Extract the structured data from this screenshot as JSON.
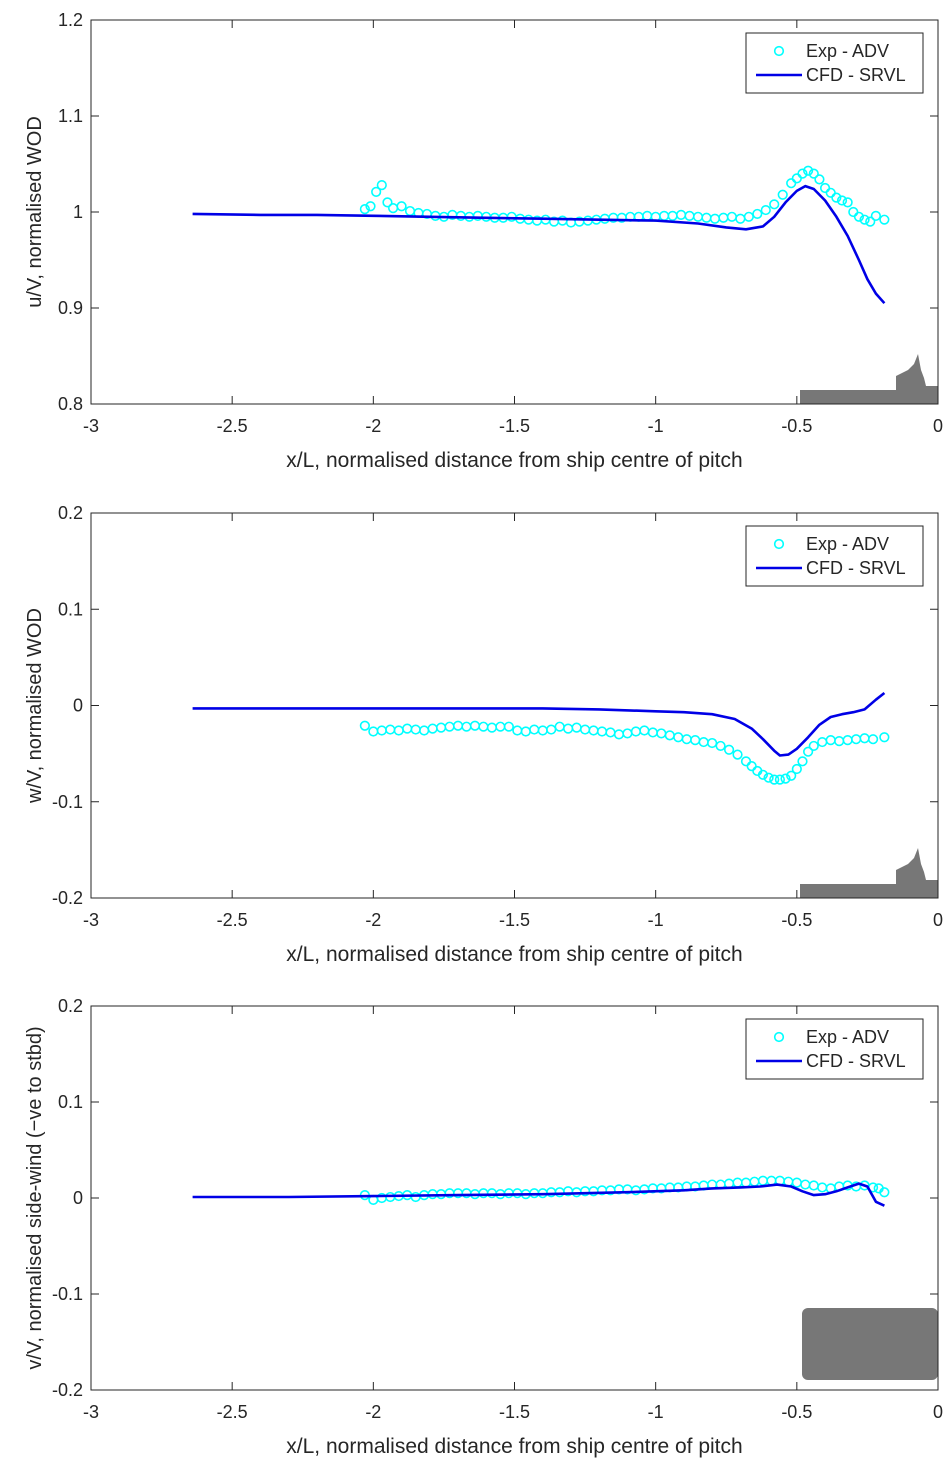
{
  "colors": {
    "exp": "#00ffff",
    "cfd": "#0000e6",
    "ship": "#777777",
    "axis": "#262626"
  },
  "chart_data": [
    {
      "type": "line",
      "xlabel": "x/L, normalised distance from ship centre of pitch",
      "ylabel": "u/V, normalised WOD",
      "xlim": [
        -3,
        0
      ],
      "ylim": [
        0.8,
        1.2
      ],
      "xticks": [
        "-3",
        "-2.5",
        "-2",
        "-1.5",
        "-1",
        "-0.5",
        "0"
      ],
      "yticks": [
        "0.8",
        "0.9",
        "1",
        "1.1",
        "1.2"
      ],
      "legend_position": "top-right",
      "grid": false,
      "series": [
        {
          "name": "Exp - ADV",
          "style": "markers",
          "x": [
            -2.03,
            -2.01,
            -1.99,
            -1.97,
            -1.95,
            -1.93,
            -1.9,
            -1.87,
            -1.84,
            -1.81,
            -1.78,
            -1.75,
            -1.72,
            -1.69,
            -1.66,
            -1.63,
            -1.6,
            -1.57,
            -1.54,
            -1.51,
            -1.48,
            -1.45,
            -1.42,
            -1.39,
            -1.36,
            -1.33,
            -1.3,
            -1.27,
            -1.24,
            -1.21,
            -1.18,
            -1.15,
            -1.12,
            -1.09,
            -1.06,
            -1.03,
            -1.0,
            -0.97,
            -0.94,
            -0.91,
            -0.88,
            -0.85,
            -0.82,
            -0.79,
            -0.76,
            -0.73,
            -0.7,
            -0.67,
            -0.64,
            -0.61,
            -0.58,
            -0.55,
            -0.52,
            -0.5,
            -0.48,
            -0.46,
            -0.44,
            -0.42,
            -0.4,
            -0.38,
            -0.36,
            -0.34,
            -0.32,
            -0.3,
            -0.28,
            -0.26,
            -0.24,
            -0.22,
            -0.19
          ],
          "y": [
            1.003,
            1.006,
            1.021,
            1.028,
            1.01,
            1.004,
            1.006,
            1.001,
            0.999,
            0.998,
            0.996,
            0.995,
            0.997,
            0.996,
            0.995,
            0.996,
            0.995,
            0.994,
            0.994,
            0.995,
            0.993,
            0.992,
            0.991,
            0.992,
            0.99,
            0.991,
            0.989,
            0.99,
            0.991,
            0.992,
            0.993,
            0.994,
            0.994,
            0.995,
            0.995,
            0.996,
            0.995,
            0.996,
            0.996,
            0.997,
            0.996,
            0.995,
            0.994,
            0.993,
            0.994,
            0.995,
            0.993,
            0.995,
            0.998,
            1.002,
            1.008,
            1.018,
            1.03,
            1.035,
            1.04,
            1.043,
            1.04,
            1.034,
            1.025,
            1.02,
            1.015,
            1.012,
            1.01,
            1.0,
            0.995,
            0.992,
            0.99,
            0.996,
            0.992
          ]
        },
        {
          "name": "CFD - SRVL",
          "style": "line",
          "x": [
            -2.64,
            -2.4,
            -2.2,
            -2.0,
            -1.8,
            -1.6,
            -1.4,
            -1.2,
            -1.0,
            -0.85,
            -0.75,
            -0.68,
            -0.62,
            -0.58,
            -0.54,
            -0.5,
            -0.47,
            -0.44,
            -0.4,
            -0.36,
            -0.32,
            -0.28,
            -0.25,
            -0.22,
            -0.19
          ],
          "y": [
            0.998,
            0.997,
            0.997,
            0.996,
            0.995,
            0.994,
            0.993,
            0.992,
            0.991,
            0.988,
            0.984,
            0.982,
            0.985,
            0.995,
            1.01,
            1.022,
            1.027,
            1.024,
            1.012,
            0.995,
            0.975,
            0.95,
            0.93,
            0.915,
            0.905
          ]
        }
      ]
    },
    {
      "type": "line",
      "xlabel": "x/L, normalised distance from ship centre of pitch",
      "ylabel": "w/V, normalised WOD",
      "xlim": [
        -3,
        0
      ],
      "ylim": [
        -0.2,
        0.2
      ],
      "xticks": [
        "-3",
        "-2.5",
        "-2",
        "-1.5",
        "-1",
        "-0.5",
        "0"
      ],
      "yticks": [
        "-0.2",
        "-0.1",
        "0",
        "0.1",
        "0.2"
      ],
      "legend_position": "top-right",
      "grid": false,
      "series": [
        {
          "name": "Exp - ADV",
          "style": "markers",
          "x": [
            -2.03,
            -2.0,
            -1.97,
            -1.94,
            -1.91,
            -1.88,
            -1.85,
            -1.82,
            -1.79,
            -1.76,
            -1.73,
            -1.7,
            -1.67,
            -1.64,
            -1.61,
            -1.58,
            -1.55,
            -1.52,
            -1.49,
            -1.46,
            -1.43,
            -1.4,
            -1.37,
            -1.34,
            -1.31,
            -1.28,
            -1.25,
            -1.22,
            -1.19,
            -1.16,
            -1.13,
            -1.1,
            -1.07,
            -1.04,
            -1.01,
            -0.98,
            -0.95,
            -0.92,
            -0.89,
            -0.86,
            -0.83,
            -0.8,
            -0.77,
            -0.74,
            -0.71,
            -0.68,
            -0.66,
            -0.64,
            -0.62,
            -0.6,
            -0.58,
            -0.56,
            -0.54,
            -0.52,
            -0.5,
            -0.48,
            -0.46,
            -0.44,
            -0.41,
            -0.38,
            -0.35,
            -0.32,
            -0.29,
            -0.26,
            -0.23,
            -0.19
          ],
          "y": [
            -0.021,
            -0.027,
            -0.026,
            -0.025,
            -0.026,
            -0.024,
            -0.025,
            -0.026,
            -0.024,
            -0.023,
            -0.022,
            -0.021,
            -0.022,
            -0.021,
            -0.022,
            -0.023,
            -0.022,
            -0.022,
            -0.026,
            -0.027,
            -0.025,
            -0.026,
            -0.025,
            -0.022,
            -0.024,
            -0.023,
            -0.025,
            -0.026,
            -0.027,
            -0.028,
            -0.03,
            -0.029,
            -0.027,
            -0.026,
            -0.028,
            -0.029,
            -0.031,
            -0.033,
            -0.035,
            -0.036,
            -0.038,
            -0.039,
            -0.042,
            -0.046,
            -0.051,
            -0.058,
            -0.063,
            -0.068,
            -0.072,
            -0.075,
            -0.077,
            -0.077,
            -0.076,
            -0.073,
            -0.066,
            -0.058,
            -0.048,
            -0.042,
            -0.038,
            -0.036,
            -0.037,
            -0.036,
            -0.035,
            -0.034,
            -0.035,
            -0.033
          ]
        },
        {
          "name": "CFD - SRVL",
          "style": "line",
          "x": [
            -2.64,
            -2.4,
            -2.2,
            -2.0,
            -1.8,
            -1.6,
            -1.4,
            -1.2,
            -1.0,
            -0.9,
            -0.8,
            -0.72,
            -0.66,
            -0.62,
            -0.58,
            -0.56,
            -0.53,
            -0.5,
            -0.46,
            -0.42,
            -0.38,
            -0.34,
            -0.3,
            -0.26,
            -0.22,
            -0.19
          ],
          "y": [
            -0.003,
            -0.003,
            -0.003,
            -0.003,
            -0.003,
            -0.003,
            -0.003,
            -0.004,
            -0.006,
            -0.007,
            -0.009,
            -0.014,
            -0.024,
            -0.035,
            -0.047,
            -0.052,
            -0.051,
            -0.045,
            -0.033,
            -0.02,
            -0.012,
            -0.009,
            -0.007,
            -0.004,
            0.006,
            0.013
          ]
        }
      ]
    },
    {
      "type": "line",
      "xlabel": "x/L, normalised distance from ship centre of pitch",
      "ylabel": "v/V, normalised side-wind (−ve to stbd)",
      "xlim": [
        -3,
        0
      ],
      "ylim": [
        -0.2,
        0.2
      ],
      "xticks": [
        "-3",
        "-2.5",
        "-2",
        "-1.5",
        "-1",
        "-0.5",
        "0"
      ],
      "yticks": [
        "-0.2",
        "-0.1",
        "0",
        "0.1",
        "0.2"
      ],
      "legend_position": "top-right",
      "grid": false,
      "series": [
        {
          "name": "Exp - ADV",
          "style": "markers",
          "x": [
            -2.03,
            -2.0,
            -1.97,
            -1.94,
            -1.91,
            -1.88,
            -1.85,
            -1.82,
            -1.79,
            -1.76,
            -1.73,
            -1.7,
            -1.67,
            -1.64,
            -1.61,
            -1.58,
            -1.55,
            -1.52,
            -1.49,
            -1.46,
            -1.43,
            -1.4,
            -1.37,
            -1.34,
            -1.31,
            -1.28,
            -1.25,
            -1.22,
            -1.19,
            -1.16,
            -1.13,
            -1.1,
            -1.07,
            -1.04,
            -1.01,
            -0.98,
            -0.95,
            -0.92,
            -0.89,
            -0.86,
            -0.83,
            -0.8,
            -0.77,
            -0.74,
            -0.71,
            -0.68,
            -0.65,
            -0.62,
            -0.59,
            -0.56,
            -0.53,
            -0.5,
            -0.47,
            -0.44,
            -0.41,
            -0.38,
            -0.35,
            -0.32,
            -0.29,
            -0.26,
            -0.23,
            -0.21,
            -0.19
          ],
          "y": [
            0.003,
            -0.002,
            0.0,
            0.001,
            0.002,
            0.003,
            0.001,
            0.003,
            0.004,
            0.004,
            0.005,
            0.005,
            0.005,
            0.004,
            0.005,
            0.005,
            0.004,
            0.005,
            0.005,
            0.004,
            0.005,
            0.005,
            0.006,
            0.006,
            0.007,
            0.006,
            0.007,
            0.007,
            0.008,
            0.008,
            0.009,
            0.009,
            0.008,
            0.009,
            0.01,
            0.01,
            0.011,
            0.011,
            0.012,
            0.012,
            0.013,
            0.014,
            0.014,
            0.015,
            0.016,
            0.016,
            0.017,
            0.018,
            0.018,
            0.018,
            0.017,
            0.016,
            0.014,
            0.013,
            0.011,
            0.01,
            0.012,
            0.013,
            0.012,
            0.013,
            0.011,
            0.01,
            0.006
          ]
        },
        {
          "name": "CFD - SRVL",
          "style": "line",
          "x": [
            -2.64,
            -2.3,
            -2.0,
            -1.7,
            -1.4,
            -1.1,
            -0.9,
            -0.8,
            -0.7,
            -0.63,
            -0.57,
            -0.52,
            -0.48,
            -0.44,
            -0.4,
            -0.36,
            -0.32,
            -0.28,
            -0.25,
            -0.22,
            -0.19
          ],
          "y": [
            0.001,
            0.001,
            0.002,
            0.003,
            0.004,
            0.006,
            0.008,
            0.01,
            0.011,
            0.012,
            0.014,
            0.012,
            0.007,
            0.003,
            0.004,
            0.007,
            0.011,
            0.015,
            0.012,
            -0.004,
            -0.008
          ]
        }
      ]
    }
  ]
}
